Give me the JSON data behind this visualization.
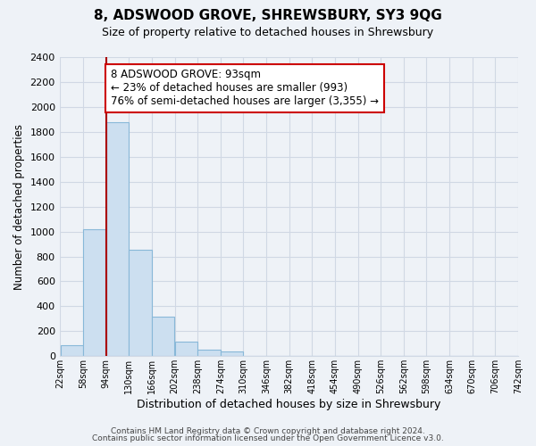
{
  "title": "8, ADSWOOD GROVE, SHREWSBURY, SY3 9QG",
  "subtitle": "Size of property relative to detached houses in Shrewsbury",
  "xlabel": "Distribution of detached houses by size in Shrewsbury",
  "ylabel": "Number of detached properties",
  "bar_color": "#ccdff0",
  "bar_edge_color": "#88b8d8",
  "bin_edges": [
    22,
    58,
    94,
    130,
    166,
    202,
    238,
    274,
    310,
    346,
    382,
    418,
    454,
    490,
    526,
    562,
    598,
    634,
    670,
    706,
    742
  ],
  "bar_heights": [
    90,
    1020,
    1880,
    855,
    320,
    115,
    50,
    35,
    0,
    0,
    0,
    0,
    0,
    0,
    0,
    0,
    0,
    0,
    0,
    0
  ],
  "tick_labels": [
    "22sqm",
    "58sqm",
    "94sqm",
    "130sqm",
    "166sqm",
    "202sqm",
    "238sqm",
    "274sqm",
    "310sqm",
    "346sqm",
    "382sqm",
    "418sqm",
    "454sqm",
    "490sqm",
    "526sqm",
    "562sqm",
    "598sqm",
    "634sqm",
    "670sqm",
    "706sqm",
    "742sqm"
  ],
  "property_line_x": 94,
  "property_line_color": "#aa0000",
  "annotation_line1": "8 ADSWOOD GROVE: 93sqm",
  "annotation_line2": "← 23% of detached houses are smaller (993)",
  "annotation_line3": "76% of semi-detached houses are larger (3,355) →",
  "annotation_box_color": "#ffffff",
  "annotation_box_edge": "#cc0000",
  "ylim": [
    0,
    2400
  ],
  "yticks": [
    0,
    200,
    400,
    600,
    800,
    1000,
    1200,
    1400,
    1600,
    1800,
    2000,
    2200,
    2400
  ],
  "footer1": "Contains HM Land Registry data © Crown copyright and database right 2024.",
  "footer2": "Contains public sector information licensed under the Open Government Licence v3.0.",
  "background_color": "#eef2f7",
  "plot_bg_color": "#eef2f7",
  "grid_color": "#d0d8e4"
}
